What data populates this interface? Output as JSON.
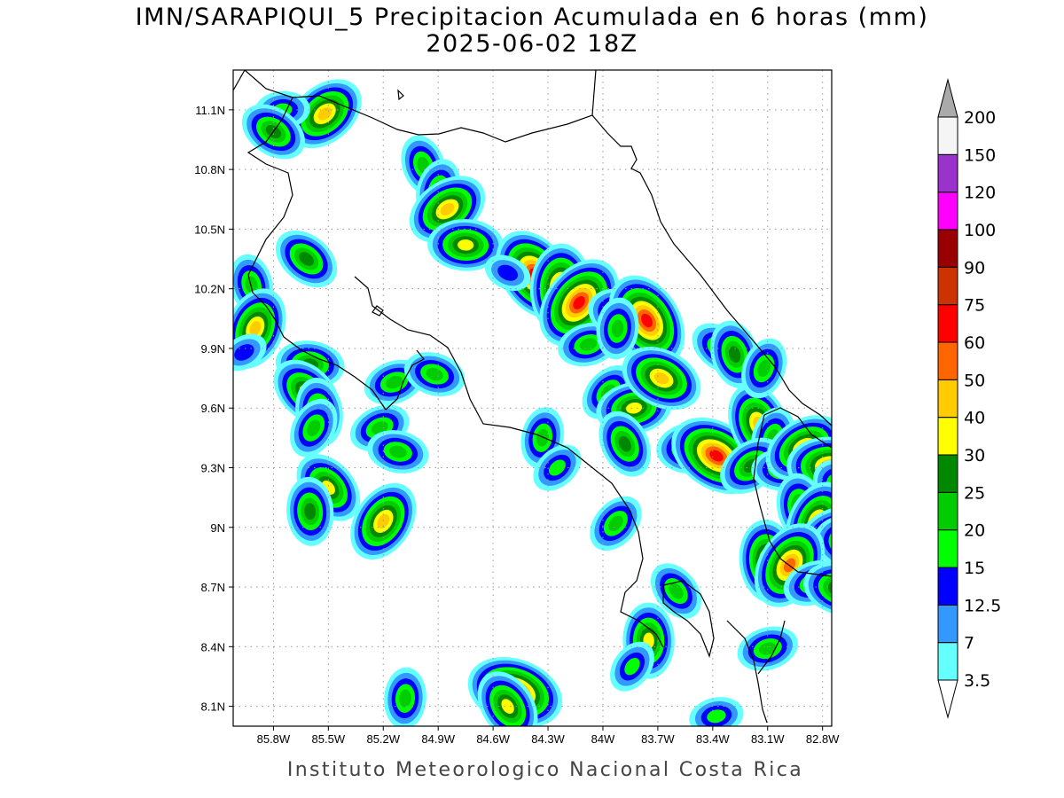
{
  "title": {
    "line1": "IMN/SARAPIQUI_5 Precipitacion Acumulada en 6 horas (mm)",
    "line2": "2025-06-02 18Z"
  },
  "footer": "Instituto Meteorologico Nacional Costa Rica",
  "map": {
    "lon_range": [
      -86.02,
      -82.75
    ],
    "lat_range": [
      8.0,
      11.3
    ],
    "x_ticks": [
      "85.8W",
      "85.5W",
      "85.2W",
      "84.9W",
      "84.6W",
      "84.3W",
      "84W",
      "83.7W",
      "83.4W",
      "83.1W",
      "82.8W"
    ],
    "y_ticks": [
      "11.1N",
      "10.8N",
      "10.5N",
      "10.2N",
      "9.9N",
      "9.6N",
      "9.3N",
      "9N",
      "8.7N",
      "8.4N",
      "8.1N"
    ]
  },
  "colorbar": {
    "levels": [
      "3.5",
      "7",
      "12.5",
      "15",
      "20",
      "25",
      "30",
      "40",
      "50",
      "60",
      "75",
      "90",
      "100",
      "120",
      "150",
      "200"
    ],
    "colors": [
      "#66ffff",
      "#3399ff",
      "#0000ff",
      "#00ff00",
      "#00cc00",
      "#008800",
      "#ffff00",
      "#ffcc00",
      "#ff6600",
      "#ff0000",
      "#cc3300",
      "#990000",
      "#ff00ff",
      "#9933cc",
      "#f5f5f5"
    ],
    "top_arrow_color": "#aaaaaa",
    "bottom_arrow_color": "#ffffff"
  },
  "precip_cells": [
    {
      "name": "rain-cell-guanacaste-north",
      "lon": -85.52,
      "lat": 11.08,
      "peak": 40
    },
    {
      "name": "rain-cell",
      "lon": -85.75,
      "lat": 11.1,
      "peak": 15
    },
    {
      "name": "rain-cell",
      "lon": -85.8,
      "lat": 10.99,
      "peak": 25
    },
    {
      "name": "rain-cell",
      "lon": -84.98,
      "lat": 10.82,
      "peak": 20
    },
    {
      "name": "rain-cell",
      "lon": -84.9,
      "lat": 10.7,
      "peak": 20
    },
    {
      "name": "rain-cell",
      "lon": -84.85,
      "lat": 10.6,
      "peak": 40
    },
    {
      "name": "rain-cell",
      "lon": -84.75,
      "lat": 10.42,
      "peak": 30
    },
    {
      "name": "rain-cell",
      "lon": -85.62,
      "lat": 10.35,
      "peak": 25
    },
    {
      "name": "rain-cell",
      "lon": -85.92,
      "lat": 10.22,
      "peak": 20
    },
    {
      "name": "rain-cell-nicoya",
      "lon": -85.9,
      "lat": 10.0,
      "peak": 40
    },
    {
      "name": "rain-cell",
      "lon": -85.96,
      "lat": 9.88,
      "peak": 12.5
    },
    {
      "name": "rain-cell",
      "lon": -85.6,
      "lat": 9.82,
      "peak": 25
    },
    {
      "name": "rain-cell",
      "lon": -85.62,
      "lat": 9.68,
      "peak": 30
    },
    {
      "name": "rain-cell",
      "lon": -85.55,
      "lat": 9.58,
      "peak": 25
    },
    {
      "name": "rain-cell",
      "lon": -85.58,
      "lat": 9.5,
      "peak": 20
    },
    {
      "name": "rain-cell",
      "lon": -85.22,
      "lat": 9.5,
      "peak": 20
    },
    {
      "name": "rain-cell",
      "lon": -85.12,
      "lat": 9.38,
      "peak": 20
    },
    {
      "name": "rain-cell",
      "lon": -85.5,
      "lat": 9.2,
      "peak": 30
    },
    {
      "name": "rain-cell",
      "lon": -85.6,
      "lat": 9.08,
      "peak": 25
    },
    {
      "name": "rain-cell",
      "lon": -85.2,
      "lat": 9.03,
      "peak": 40
    },
    {
      "name": "rain-cell",
      "lon": -85.14,
      "lat": 9.73,
      "peak": 20
    },
    {
      "name": "rain-cell",
      "lon": -84.92,
      "lat": 9.77,
      "peak": 20
    },
    {
      "name": "rain-cell-central",
      "lon": -84.37,
      "lat": 10.27,
      "peak": 60
    },
    {
      "name": "rain-cell",
      "lon": -84.23,
      "lat": 10.2,
      "peak": 50
    },
    {
      "name": "rain-cell",
      "lon": -84.13,
      "lat": 10.13,
      "peak": 60
    },
    {
      "name": "rain-cell",
      "lon": -84.08,
      "lat": 9.92,
      "peak": 20
    },
    {
      "name": "rain-cell",
      "lon": -83.88,
      "lat": 10.06,
      "peak": 30
    },
    {
      "name": "rain-cell",
      "lon": -83.76,
      "lat": 10.04,
      "peak": 60
    },
    {
      "name": "rain-cell",
      "lon": -83.92,
      "lat": 10.0,
      "peak": 20
    },
    {
      "name": "rain-cell",
      "lon": -83.97,
      "lat": 9.68,
      "peak": 20
    },
    {
      "name": "rain-cell",
      "lon": -83.83,
      "lat": 9.6,
      "peak": 30
    },
    {
      "name": "rain-cell",
      "lon": -83.68,
      "lat": 9.75,
      "peak": 40
    },
    {
      "name": "rain-cell",
      "lon": -83.88,
      "lat": 9.42,
      "peak": 25
    },
    {
      "name": "rain-cell",
      "lon": -84.33,
      "lat": 9.45,
      "peak": 20
    },
    {
      "name": "rain-cell",
      "lon": -84.25,
      "lat": 9.3,
      "peak": 15
    },
    {
      "name": "rain-cell",
      "lon": -83.5,
      "lat": 9.4,
      "peak": 30
    },
    {
      "name": "rain-cell",
      "lon": -83.38,
      "lat": 9.36,
      "peak": 60
    },
    {
      "name": "rain-cell",
      "lon": -83.15,
      "lat": 9.52,
      "peak": 40
    },
    {
      "name": "rain-cell",
      "lon": -83.07,
      "lat": 9.45,
      "peak": 20
    },
    {
      "name": "rain-cell",
      "lon": -83.19,
      "lat": 9.31,
      "peak": 25
    },
    {
      "name": "rain-cell",
      "lon": -83.02,
      "lat": 9.29,
      "peak": 20
    },
    {
      "name": "rain-cell",
      "lon": -83.36,
      "lat": 9.9,
      "peak": 20
    },
    {
      "name": "rain-cell",
      "lon": -83.28,
      "lat": 9.87,
      "peak": 25
    },
    {
      "name": "rain-cell",
      "lon": -83.12,
      "lat": 9.8,
      "peak": 20
    },
    {
      "name": "rain-cell",
      "lon": -82.9,
      "lat": 9.4,
      "peak": 40
    },
    {
      "name": "rain-cell",
      "lon": -82.75,
      "lat": 9.3,
      "peak": 50
    },
    {
      "name": "rain-cell",
      "lon": -82.67,
      "lat": 9.18,
      "peak": 30
    },
    {
      "name": "rain-cell",
      "lon": -82.92,
      "lat": 9.1,
      "peak": 25
    },
    {
      "name": "rain-cell",
      "lon": -82.83,
      "lat": 9.03,
      "peak": 40
    },
    {
      "name": "rain-cell",
      "lon": -82.75,
      "lat": 8.97,
      "peak": 25
    },
    {
      "name": "rain-cell",
      "lon": -82.62,
      "lat": 8.92,
      "peak": 40
    },
    {
      "name": "rain-cell",
      "lon": -82.5,
      "lat": 8.83,
      "peak": 50
    },
    {
      "name": "rain-cell",
      "lon": -83.1,
      "lat": 8.83,
      "peak": 40
    },
    {
      "name": "rain-cell",
      "lon": -82.98,
      "lat": 8.81,
      "peak": 50
    },
    {
      "name": "rain-cell",
      "lon": -82.85,
      "lat": 8.72,
      "peak": 20
    },
    {
      "name": "rain-cell",
      "lon": -82.7,
      "lat": 8.69,
      "peak": 30
    },
    {
      "name": "rain-cell",
      "lon": -83.6,
      "lat": 8.68,
      "peak": 20
    },
    {
      "name": "rain-cell",
      "lon": -83.75,
      "lat": 8.43,
      "peak": 30
    },
    {
      "name": "rain-cell",
      "lon": -83.84,
      "lat": 8.3,
      "peak": 15
    },
    {
      "name": "rain-cell",
      "lon": -83.1,
      "lat": 8.39,
      "peak": 20
    },
    {
      "name": "rain-cell-osa-south",
      "lon": -84.48,
      "lat": 8.17,
      "peak": 60
    },
    {
      "name": "rain-cell",
      "lon": -84.52,
      "lat": 8.1,
      "peak": 30
    },
    {
      "name": "rain-cell",
      "lon": -85.08,
      "lat": 8.14,
      "peak": 20
    },
    {
      "name": "rain-cell",
      "lon": -83.93,
      "lat": 9.02,
      "peak": 20
    },
    {
      "name": "rain-cell",
      "lon": -83.38,
      "lat": 8.05,
      "peak": 15
    },
    {
      "name": "rain-cell",
      "lon": -84.52,
      "lat": 10.28,
      "peak": 12.5
    }
  ]
}
